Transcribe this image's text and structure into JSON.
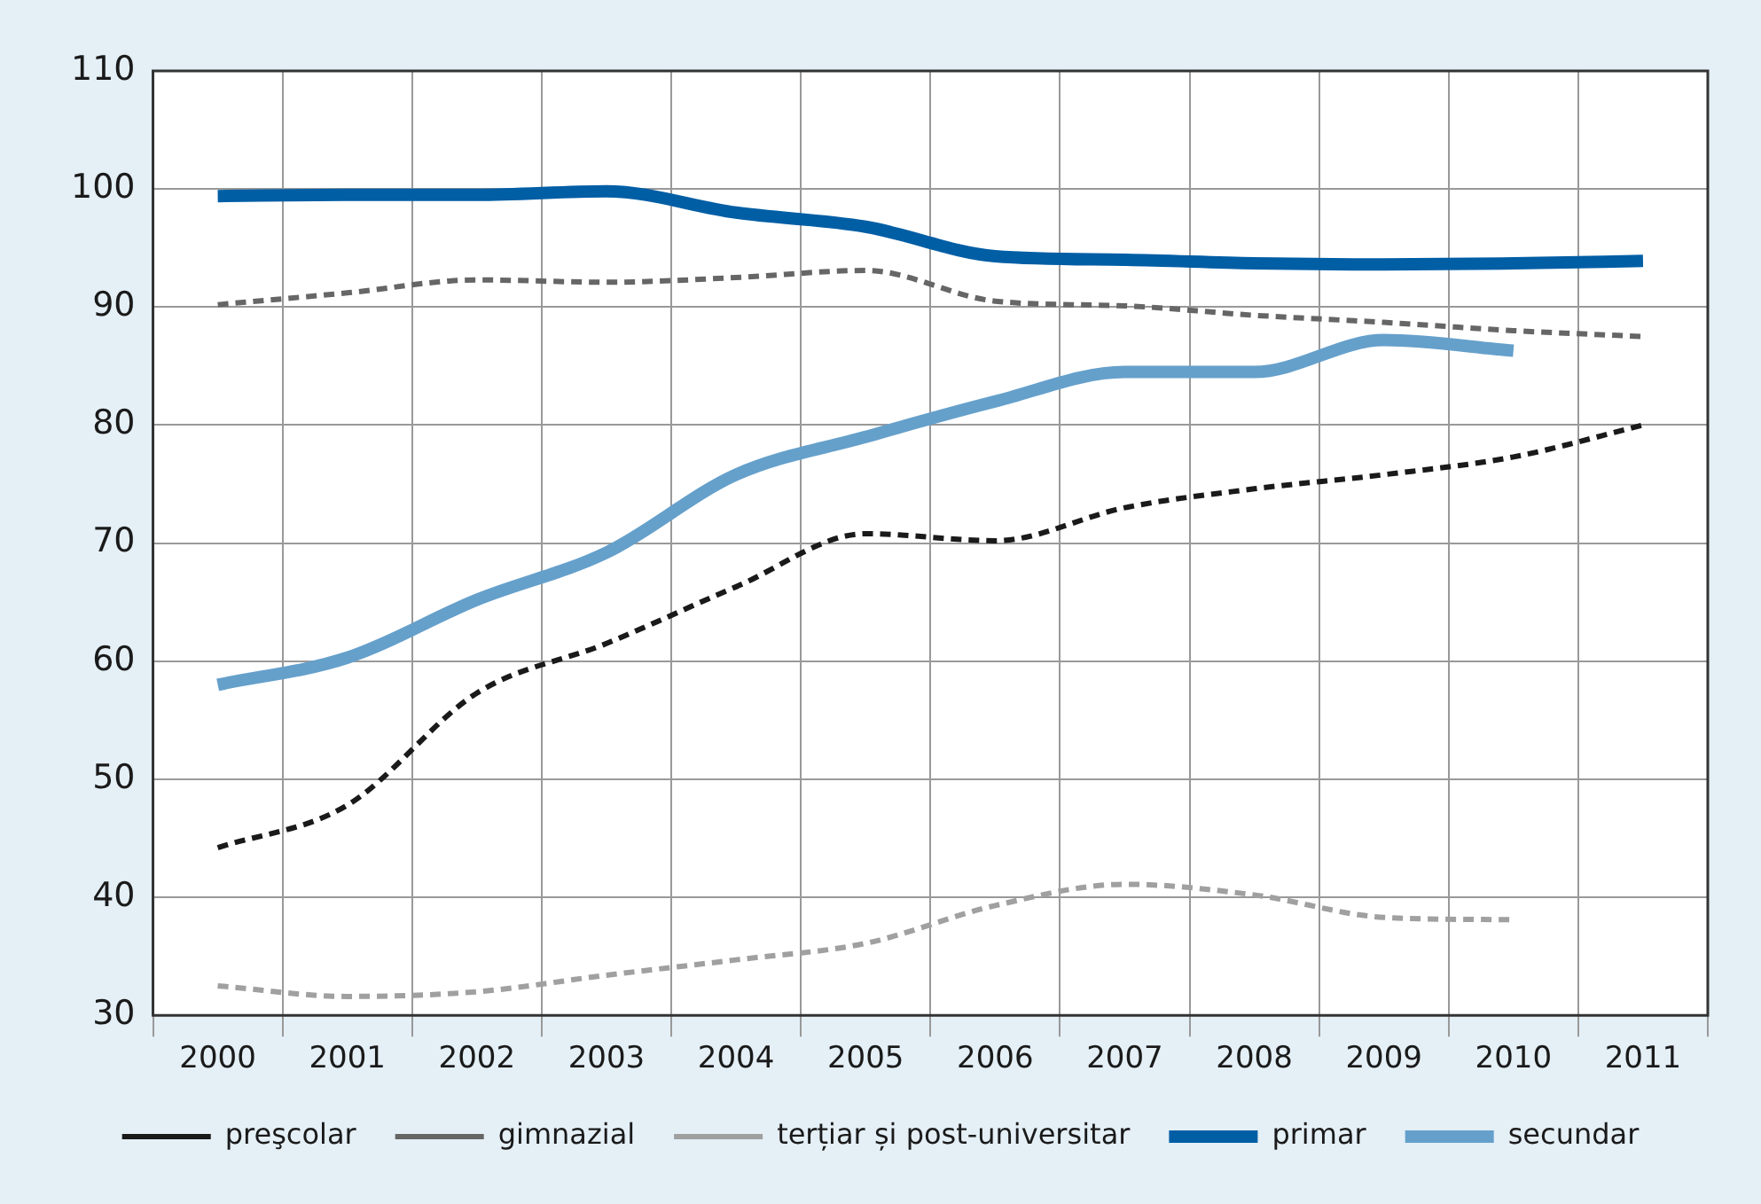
{
  "chart_data": {
    "type": "line",
    "categories": [
      "2000",
      "2001",
      "2002",
      "2003",
      "2004",
      "2005",
      "2006",
      "2007",
      "2008",
      "2009",
      "2010",
      "2011"
    ],
    "ylim": [
      30,
      110
    ],
    "yticks": [
      30,
      40,
      50,
      60,
      70,
      80,
      90,
      100,
      110
    ],
    "grid": true,
    "legend": "bottom",
    "marker": "none",
    "series": [
      {
        "name": "preşcolar",
        "color": "#1a1a1a",
        "line_style": "dashed",
        "values": [
          44.2,
          47.8,
          57.3,
          61.5,
          66.3,
          70.8,
          70.2,
          73,
          74.6,
          75.8,
          77.3,
          80
        ]
      },
      {
        "name": "gimnazial",
        "color": "#666666",
        "line_style": "dashed",
        "values": [
          90.2,
          91.2,
          92.3,
          92.1,
          92.5,
          93.1,
          90.5,
          90.1,
          89.3,
          88.7,
          88,
          87.5
        ]
      },
      {
        "name": "terțiar și post-universitar",
        "color": "#a0a0a0",
        "line_style": "dashed",
        "values": [
          32.5,
          31.6,
          32,
          33.4,
          34.7,
          36.1,
          39.3,
          41.1,
          40.2,
          38.3,
          38.1,
          null
        ]
      },
      {
        "name": "primar",
        "color": "#005ea5",
        "line_style": "solid",
        "values": [
          99.4,
          99.5,
          99.5,
          99.8,
          98,
          96.8,
          94.3,
          94,
          93.7,
          93.6,
          93.7,
          93.9
        ]
      },
      {
        "name": "secundar",
        "color": "#65a0cb",
        "line_style": "solid",
        "values": [
          58,
          60.3,
          65.2,
          69.2,
          75.8,
          79,
          82,
          84.5,
          84.5,
          87.2,
          86.3,
          null
        ]
      }
    ]
  }
}
